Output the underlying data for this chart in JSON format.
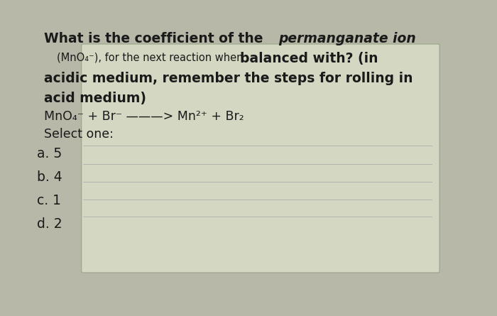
{
  "bg_outer": "#b8b8a8",
  "bg_card": "#d4d8c2",
  "text_color": "#1a1a1a",
  "divider_color": "#aaaaaa",
  "options": [
    "a. 5",
    "b. 4",
    "c. 1",
    "d. 2"
  ],
  "main_fontsize": 13.5,
  "small_fontsize": 10.5,
  "eq_fontsize": 12.5,
  "opt_fontsize": 13.5
}
